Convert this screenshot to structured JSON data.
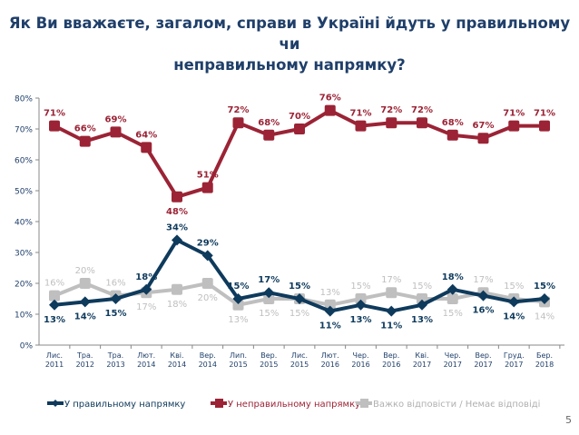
{
  "title_lines": [
    "Як Ви вважаєте, загалом, справи в Україні йдуть у правильному чи",
    "неправильному напрямку?"
  ],
  "page_number": "5",
  "chart_data": {
    "type": "line",
    "title": "Як Ви вважаєте, загалом, справи в Україні йдуть у правильному чи неправильному напрямку?",
    "categories": [
      [
        "Лис.",
        "2011"
      ],
      [
        "Тра.",
        "2012"
      ],
      [
        "Тра.",
        "2013"
      ],
      [
        "Лют.",
        "2014"
      ],
      [
        "Кві.",
        "2014"
      ],
      [
        "Вер.",
        "2014"
      ],
      [
        "Лип.",
        "2015"
      ],
      [
        "Вер.",
        "2015"
      ],
      [
        "Лис.",
        "2015"
      ],
      [
        "Лют.",
        "2016"
      ],
      [
        "Чер.",
        "2016"
      ],
      [
        "Вер.",
        "2016"
      ],
      [
        "Кві.",
        "2017"
      ],
      [
        "Чер.",
        "2017"
      ],
      [
        "Вер.",
        "2017"
      ],
      [
        "Груд.",
        "2017"
      ],
      [
        "Бер.",
        "2018"
      ]
    ],
    "yticks": [
      "0%",
      "10%",
      "20%",
      "30%",
      "40%",
      "50%",
      "60%",
      "70%",
      "80%"
    ],
    "ylim": [
      0,
      80
    ],
    "grid": false,
    "legend_placement": "bottom",
    "series": [
      {
        "name": "У правильному напрямку",
        "color": "#0E3A5C",
        "marker": "diamond",
        "values": [
          13,
          14,
          15,
          18,
          34,
          29,
          15,
          17,
          15,
          11,
          13,
          11,
          13,
          18,
          16,
          14,
          15
        ]
      },
      {
        "name": "У неправильному напрямку",
        "color": "#9B2335",
        "marker": "square",
        "values": [
          71,
          66,
          69,
          64,
          48,
          51,
          72,
          68,
          70,
          76,
          71,
          72,
          72,
          68,
          67,
          71,
          71
        ]
      },
      {
        "name": "Важко відповісти / Немає відповіді",
        "color": "#BFBFBF",
        "marker": "square",
        "values": [
          16,
          20,
          16,
          17,
          18,
          20,
          13,
          15,
          15,
          13,
          15,
          17,
          15,
          15,
          17,
          15,
          14
        ]
      }
    ]
  }
}
